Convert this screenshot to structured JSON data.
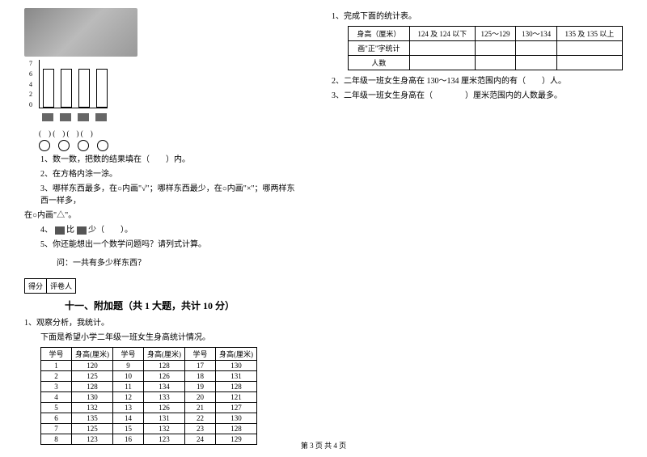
{
  "left": {
    "yAxis": [
      "7",
      "6",
      "4",
      "2",
      "0"
    ],
    "bars": [
      48,
      48,
      48,
      48
    ],
    "parenRow": "(　) (　) (　) (　)",
    "q1": "1、数一数，把数的结果填在（　　）内。",
    "q2": "2、在方格内涂一涂。",
    "q3a": "3、哪样东西最多，在○内画\"√\"；哪样东西最少，在○内画\"×\"；哪两样东西一样多，",
    "q3b": "在○内画\"△\"。",
    "q4a": "4、",
    "q4b": "比",
    "q4c": "少（　　）。",
    "q5": "5、你还能想出一个数学问题吗？请列式计算。",
    "ask": "问：一共有多少样东西？",
    "scoreLabels": [
      "得分",
      "评卷人"
    ],
    "sectionTitle": "十一、附加题（共 1 大题，共计 10 分）",
    "obs1": "1、观察分析，我统计。",
    "obs2": "下面是希望小学二年级一班女生身高统计情况。",
    "tableHeaders": [
      "学号",
      "身高(厘米)",
      "学号",
      "身高(厘米)",
      "学号",
      "身高(厘米)"
    ],
    "tableRows": [
      [
        "1",
        "120",
        "9",
        "128",
        "17",
        "130"
      ],
      [
        "2",
        "125",
        "10",
        "126",
        "18",
        "131"
      ],
      [
        "3",
        "128",
        "11",
        "134",
        "19",
        "128"
      ],
      [
        "4",
        "130",
        "12",
        "133",
        "20",
        "121"
      ],
      [
        "5",
        "132",
        "13",
        "126",
        "21",
        "127"
      ],
      [
        "6",
        "135",
        "14",
        "131",
        "22",
        "130"
      ],
      [
        "7",
        "125",
        "15",
        "132",
        "23",
        "128"
      ],
      [
        "8",
        "123",
        "16",
        "123",
        "24",
        "129"
      ]
    ]
  },
  "right": {
    "q1": "1、完成下面的统计表。",
    "headers": [
      "身高（厘米）",
      "124 及 124 以下",
      "125～129",
      "130～134",
      "135 及 135 以上"
    ],
    "rowLabels": [
      "画\"正\"字统计",
      "人数"
    ],
    "q2": "2、二年级一班女生身高在 130～134 厘米范围内的有（　　）人。",
    "q3": "3、二年级一班女生身高在（　　　　）厘米范围内的人数最多。"
  },
  "footer": "第 3 页 共 4 页"
}
